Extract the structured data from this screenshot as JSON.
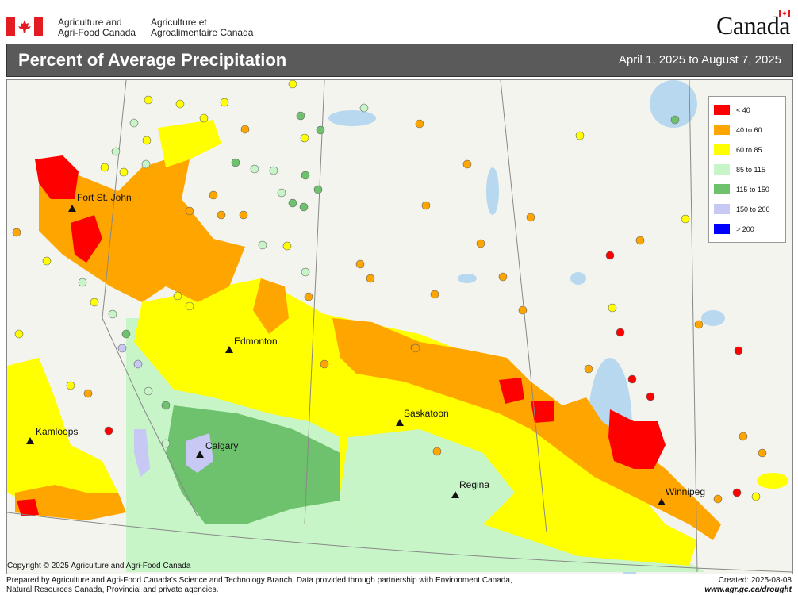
{
  "header": {
    "agency_en_line1": "Agriculture and",
    "agency_en_line2": "Agri-Food Canada",
    "agency_fr_line1": "Agriculture et",
    "agency_fr_line2": "Agroalimentaire Canada",
    "wordmark": "Canada"
  },
  "titlebar": {
    "title": "Percent of Average Precipitation",
    "dates": "April 1, 2025 to August 7, 2025"
  },
  "legend": [
    {
      "label": "< 40",
      "color": "#ff0000"
    },
    {
      "label": "40 to 60",
      "color": "#ffa500"
    },
    {
      "label": "60 to 85",
      "color": "#ffff00"
    },
    {
      "label": "85 to 115",
      "color": "#c8f5c8"
    },
    {
      "label": "115 to 150",
      "color": "#6ec26e"
    },
    {
      "label": "150 to 200",
      "color": "#c8c8f5"
    },
    {
      "label": "> 200",
      "color": "#0000ff"
    }
  ],
  "cities": {
    "fort_st_john": "Fort St. John",
    "edmonton": "Edmonton",
    "saskatoon": "Saskatoon",
    "kamloops": "Kamloops",
    "calgary": "Calgary",
    "regina": "Regina",
    "winnipeg": "Winnipeg"
  },
  "map": {
    "copyright": "Copyright © 2025 Agriculture and Agri-Food Canada"
  },
  "footer": {
    "line1": "Prepared by Agriculture and Agri-Food Canada's Science and Technology Branch. Data provided through partnership with Environment Canada,",
    "line2": "Natural Resources Canada, Provincial and private agencies.",
    "created": "Created: 2025-08-08",
    "url": "www.agr.gc.ca/drought"
  }
}
